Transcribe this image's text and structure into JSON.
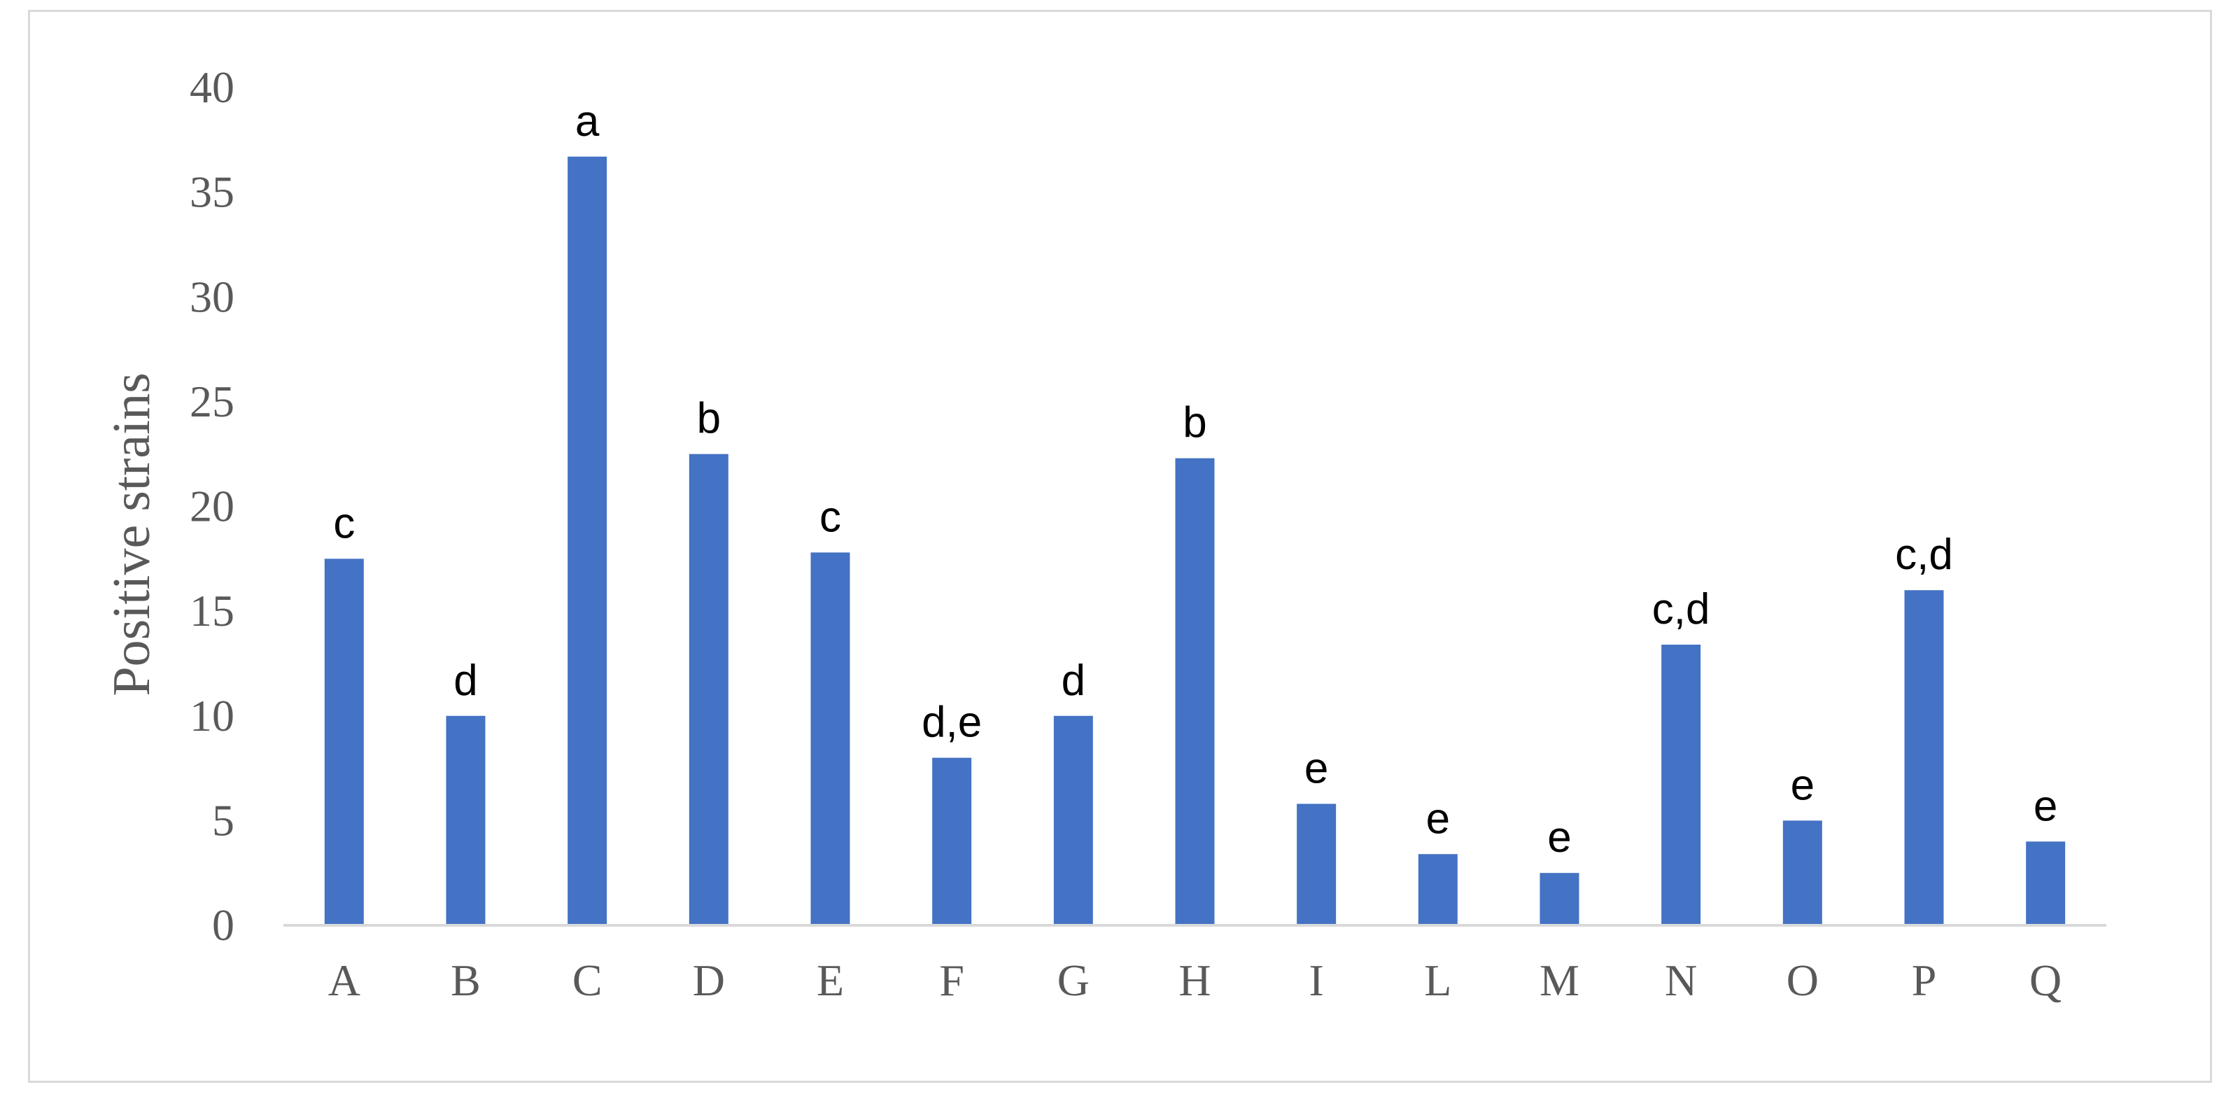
{
  "chart_data": {
    "type": "bar",
    "title": "",
    "xlabel": "",
    "ylabel": "Positive strains",
    "ylim": [
      0,
      40
    ],
    "yticks": [
      0,
      5,
      10,
      15,
      20,
      25,
      30,
      35,
      40
    ],
    "grid": false,
    "legend": "none",
    "bar_color": "#4472C4",
    "axis_color": "#d9d9d9",
    "categories": [
      "A",
      "B",
      "C",
      "D",
      "E",
      "F",
      "G",
      "H",
      "I",
      "L",
      "M",
      "N",
      "O",
      "P",
      "Q"
    ],
    "values": [
      17.5,
      10,
      36.7,
      22.5,
      17.8,
      8,
      10,
      22.3,
      5.8,
      3.4,
      2.5,
      13.4,
      5,
      16,
      4
    ],
    "labels": [
      "c",
      "d",
      "a",
      "b",
      "c",
      "d,e",
      "d",
      "b",
      "e",
      "e",
      "e",
      "c,d",
      "e",
      "c,d",
      "e"
    ]
  }
}
